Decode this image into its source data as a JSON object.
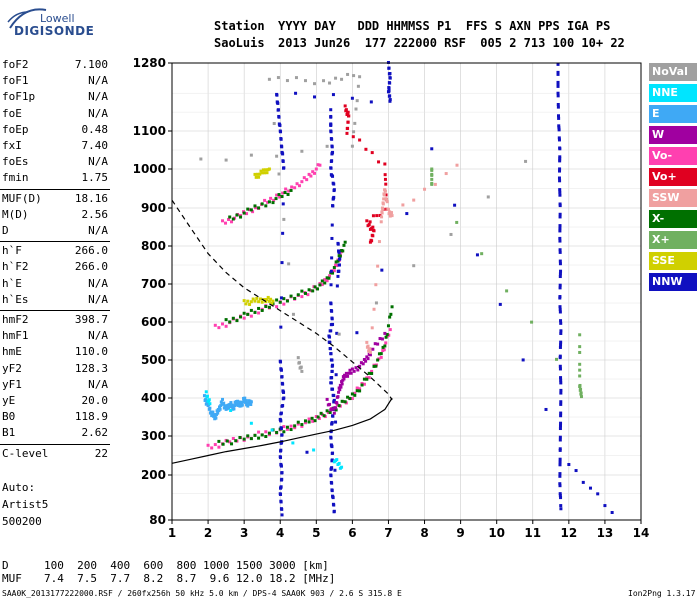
{
  "logo": {
    "top": "Lowell",
    "bottom": "DIGISONDE"
  },
  "header": {
    "line1_label": "Station",
    "line1_fields": "YYYY DAY   DDD HHMMSS P1  FFS S AXN PPS IGA PS",
    "line2_station": "SaoLuis",
    "line2_fields": "2013 Jun26  177 222000 RSF  005 2 713 100 10+ 22"
  },
  "params": [
    {
      "label": "foF2",
      "value": "7.100"
    },
    {
      "label": "foF1",
      "value": "N/A"
    },
    {
      "label": "foF1p",
      "value": "N/A"
    },
    {
      "label": "foE",
      "value": "N/A"
    },
    {
      "label": "foEp",
      "value": "0.48"
    },
    {
      "label": "fxI",
      "value": "7.40"
    },
    {
      "label": "foEs",
      "value": "N/A"
    },
    {
      "label": "fmin",
      "value": "1.75"
    },
    {
      "label": "MUF(D)",
      "value": "18.16"
    },
    {
      "label": "M(D)",
      "value": "2.56"
    },
    {
      "label": "D",
      "value": "N/A"
    },
    {
      "label": "h`F",
      "value": "266.0"
    },
    {
      "label": "h`F2",
      "value": "266.0"
    },
    {
      "label": "h`E",
      "value": "N/A"
    },
    {
      "label": "h`Es",
      "value": "N/A"
    },
    {
      "label": "hmF2",
      "value": "398.7"
    },
    {
      "label": "hmF1",
      "value": "N/A"
    },
    {
      "label": "hmE",
      "value": "110.0"
    },
    {
      "label": "yF2",
      "value": "128.3"
    },
    {
      "label": "yF1",
      "value": "N/A"
    },
    {
      "label": "yE",
      "value": "20.0"
    },
    {
      "label": "B0",
      "value": "118.9"
    },
    {
      "label": "B1",
      "value": "2.62"
    },
    {
      "label": "C-level",
      "value": "22"
    }
  ],
  "auto": {
    "line1": "Auto:",
    "line2": "Artist5",
    "line3": "500200"
  },
  "legend": [
    {
      "label": "NoVal",
      "color": "#a0a0a0"
    },
    {
      "label": "NNE",
      "color": "#00e5ff"
    },
    {
      "label": "E",
      "color": "#3fa9f5"
    },
    {
      "label": "W",
      "color": "#a000a0"
    },
    {
      "label": "Vo-",
      "color": "#ff40b0"
    },
    {
      "label": "Vo+",
      "color": "#e00020"
    },
    {
      "label": "SSW",
      "color": "#f0a0a0"
    },
    {
      "label": "X-",
      "color": "#007000"
    },
    {
      "label": "X+",
      "color": "#70b060"
    },
    {
      "label": "SSE",
      "color": "#d0d000"
    },
    {
      "label": "NNW",
      "color": "#1010c0"
    }
  ],
  "muf_table": {
    "d_label": "D",
    "d_values": "100  200  400  600  800 1000 1500 3000 [km]",
    "muf_label": "MUF",
    "muf_values": "7.4  7.5  7.7  8.2  8.7  9.6 12.0 18.2 [MHz]"
  },
  "footer": "SAA0K_2013177222000.RSF / 260fx256h 50 kHz 5.0 km / DPS-4 SAA0K 903 / 2.6 S 315.8 E",
  "version": "Ion2Png 1.3.17",
  "chart_data": {
    "type": "scatter",
    "x_ticks": [
      1,
      2,
      3,
      4,
      5,
      6,
      7,
      8,
      9,
      10,
      11,
      12,
      13,
      14
    ],
    "y_ticks": [
      80,
      200,
      300,
      400,
      500,
      600,
      700,
      800,
      900,
      1000,
      1100,
      1280
    ],
    "xlim": [
      1,
      14
    ],
    "ylim": [
      80,
      1280
    ],
    "grid": true,
    "series": [
      {
        "color": "#ff40b0",
        "points": [
          [
            2.0,
            270
          ],
          [
            2.6,
            285
          ],
          [
            3.2,
            300
          ],
          [
            3.8,
            312
          ],
          [
            4.4,
            325
          ],
          [
            5.0,
            345
          ],
          [
            5.5,
            370
          ],
          [
            6.0,
            405
          ],
          [
            6.4,
            450
          ],
          [
            6.8,
            510
          ],
          [
            7.05,
            580
          ]
        ]
      },
      {
        "color": "#007000",
        "points": [
          [
            2.3,
            280
          ],
          [
            3.0,
            292
          ],
          [
            3.6,
            305
          ],
          [
            4.2,
            320
          ],
          [
            4.8,
            340
          ],
          [
            5.3,
            360
          ],
          [
            5.8,
            390
          ],
          [
            6.2,
            425
          ],
          [
            6.6,
            480
          ],
          [
            6.9,
            540
          ],
          [
            7.1,
            640
          ]
        ]
      },
      {
        "color": "#ff40b0",
        "points": [
          [
            2.2,
            585
          ],
          [
            2.8,
            605
          ],
          [
            3.4,
            630
          ],
          [
            4.0,
            650
          ],
          [
            4.6,
            670
          ],
          [
            5.1,
            695
          ],
          [
            5.5,
            735
          ],
          [
            5.7,
            785
          ]
        ]
      },
      {
        "color": "#007000",
        "points": [
          [
            2.5,
            600
          ],
          [
            3.1,
            620
          ],
          [
            3.7,
            645
          ],
          [
            4.3,
            665
          ],
          [
            4.9,
            685
          ],
          [
            5.3,
            710
          ],
          [
            5.6,
            760
          ],
          [
            5.8,
            810
          ]
        ]
      },
      {
        "color": "#ff40b0",
        "points": [
          [
            2.4,
            860
          ],
          [
            2.9,
            880
          ],
          [
            3.4,
            905
          ],
          [
            3.9,
            930
          ],
          [
            4.4,
            955
          ],
          [
            4.8,
            980
          ],
          [
            5.1,
            1010
          ]
        ]
      },
      {
        "color": "#007000",
        "points": [
          [
            2.6,
            870
          ],
          [
            3.2,
            895
          ],
          [
            3.8,
            920
          ],
          [
            4.3,
            945
          ]
        ]
      },
      {
        "color": "#d0d000",
        "points": [
          [
            3.0,
            650
          ],
          [
            3.3,
            655
          ],
          [
            3.6,
            660
          ],
          [
            3.8,
            655
          ]
        ]
      },
      {
        "color": "#d0d000",
        "points": [
          [
            3.3,
            980
          ],
          [
            3.5,
            990
          ],
          [
            3.7,
            1000
          ]
        ]
      },
      {
        "color": "#3fa9f5",
        "points": [
          [
            1.9,
            400
          ],
          [
            2.0,
            380
          ],
          [
            2.1,
            360
          ],
          [
            2.2,
            350
          ],
          [
            2.3,
            370
          ],
          [
            2.4,
            390
          ],
          [
            2.5,
            370
          ],
          [
            2.6,
            385
          ],
          [
            2.7,
            375
          ],
          [
            2.8,
            390
          ],
          [
            2.9,
            380
          ],
          [
            3.0,
            395
          ],
          [
            3.1,
            385
          ],
          [
            3.2,
            390
          ]
        ]
      },
      {
        "color": "#1010c0",
        "points": [
          [
            5.4,
            1150
          ],
          [
            5.4,
            1100
          ],
          [
            5.45,
            1050
          ],
          [
            5.4,
            1000
          ],
          [
            5.5,
            950
          ],
          [
            5.45,
            900
          ],
          [
            5.4,
            650
          ],
          [
            5.45,
            600
          ],
          [
            5.35,
            560
          ],
          [
            5.4,
            520
          ],
          [
            5.45,
            480
          ],
          [
            5.4,
            440
          ],
          [
            5.5,
            400
          ],
          [
            5.45,
            350
          ],
          [
            5.4,
            300
          ],
          [
            5.45,
            250
          ],
          [
            5.4,
            200
          ],
          [
            5.45,
            150
          ],
          [
            5.5,
            100
          ],
          [
            5.6,
            810
          ],
          [
            5.65,
            760
          ],
          [
            5.6,
            720
          ]
        ]
      },
      {
        "color": "#a000a0",
        "points": [
          [
            5.3,
            390
          ],
          [
            5.5,
            360
          ],
          [
            5.6,
            410
          ],
          [
            5.7,
            440
          ],
          [
            5.8,
            460
          ],
          [
            6.0,
            470
          ],
          [
            6.3,
            490
          ],
          [
            6.5,
            520
          ],
          [
            6.9,
            570
          ]
        ]
      },
      {
        "color": "#e00020",
        "points": [
          [
            5.8,
            1160
          ],
          [
            5.9,
            1140
          ],
          [
            5.85,
            1100
          ],
          [
            6.9,
            1010
          ],
          [
            6.95,
            900
          ],
          [
            6.4,
            860
          ],
          [
            6.6,
            840
          ],
          [
            6.5,
            810
          ]
        ]
      },
      {
        "color": "#f0a0a0",
        "points": [
          [
            6.4,
            540
          ],
          [
            6.5,
            520
          ],
          [
            6.8,
            870
          ],
          [
            6.85,
            910
          ],
          [
            6.9,
            950
          ],
          [
            7.0,
            890
          ],
          [
            7.1,
            880
          ],
          [
            8.9,
            1010
          ]
        ]
      },
      {
        "color": "#1010c0",
        "points": [
          [
            11.7,
            1270
          ],
          [
            11.7,
            1200
          ],
          [
            11.72,
            1120
          ],
          [
            11.75,
            1050
          ],
          [
            11.74,
            980
          ],
          [
            11.76,
            900
          ],
          [
            11.75,
            820
          ],
          [
            11.77,
            740
          ],
          [
            11.75,
            660
          ],
          [
            11.78,
            580
          ],
          [
            11.76,
            500
          ],
          [
            11.78,
            420
          ],
          [
            11.77,
            340
          ],
          [
            11.76,
            260
          ],
          [
            11.75,
            180
          ],
          [
            11.78,
            110
          ]
        ]
      },
      {
        "color": "#1010c0",
        "points": [
          [
            7.0,
            1275
          ],
          [
            7.05,
            1240
          ],
          [
            7.0,
            1210
          ],
          [
            7.05,
            1180
          ],
          [
            3.9,
            1200
          ],
          [
            3.95,
            1150
          ],
          [
            4.0,
            1100
          ],
          [
            4.05,
            1050
          ],
          [
            4.1,
            1000
          ],
          [
            4.0,
            500
          ],
          [
            4.05,
            450
          ],
          [
            4.1,
            400
          ],
          [
            4.0,
            350
          ],
          [
            4.05,
            300
          ],
          [
            4.0,
            250
          ],
          [
            4.05,
            200
          ],
          [
            4.0,
            150
          ],
          [
            4.05,
            100
          ],
          [
            8.2,
            1050
          ],
          [
            12.0,
            230
          ],
          [
            13.2,
            100
          ]
        ]
      },
      {
        "color": "#70b060",
        "points": [
          [
            12.3,
            560
          ],
          [
            12.3,
            430
          ],
          [
            12.35,
            410
          ],
          [
            8.2,
            960
          ],
          [
            8.2,
            1000
          ]
        ]
      },
      {
        "color": "#a0a0a0",
        "points": [
          [
            1.8,
            1020
          ],
          [
            6.0,
            1060
          ],
          [
            6.2,
            1250
          ],
          [
            5.2,
            1230
          ],
          [
            3.7,
            1240
          ],
          [
            4.5,
            500
          ],
          [
            4.6,
            470
          ],
          [
            10.8,
            1020
          ]
        ]
      },
      {
        "color": "#00e5ff",
        "points": [
          [
            1.95,
            410
          ],
          [
            2.05,
            385
          ],
          [
            5.5,
            240
          ],
          [
            5.7,
            220
          ]
        ]
      }
    ],
    "curves": [
      {
        "name": "dashed",
        "style": "dashed",
        "points": [
          [
            1.0,
            920
          ],
          [
            1.5,
            850
          ],
          [
            2.0,
            780
          ],
          [
            2.5,
            730
          ],
          [
            3.0,
            690
          ],
          [
            3.5,
            660
          ],
          [
            4.0,
            630
          ],
          [
            4.5,
            600
          ],
          [
            5.0,
            570
          ],
          [
            5.5,
            535
          ],
          [
            6.0,
            495
          ],
          [
            6.5,
            455
          ],
          [
            7.0,
            410
          ],
          [
            7.1,
            395
          ]
        ]
      },
      {
        "name": "solid",
        "style": "solid",
        "points": [
          [
            1.0,
            230
          ],
          [
            1.5,
            240
          ],
          [
            2.0,
            250
          ],
          [
            2.5,
            260
          ],
          [
            3.0,
            268
          ],
          [
            3.5,
            276
          ],
          [
            4.0,
            285
          ],
          [
            4.5,
            295
          ],
          [
            5.0,
            305
          ],
          [
            5.5,
            315
          ],
          [
            6.0,
            328
          ],
          [
            6.5,
            345
          ],
          [
            6.9,
            370
          ],
          [
            7.1,
            400
          ]
        ]
      }
    ]
  }
}
